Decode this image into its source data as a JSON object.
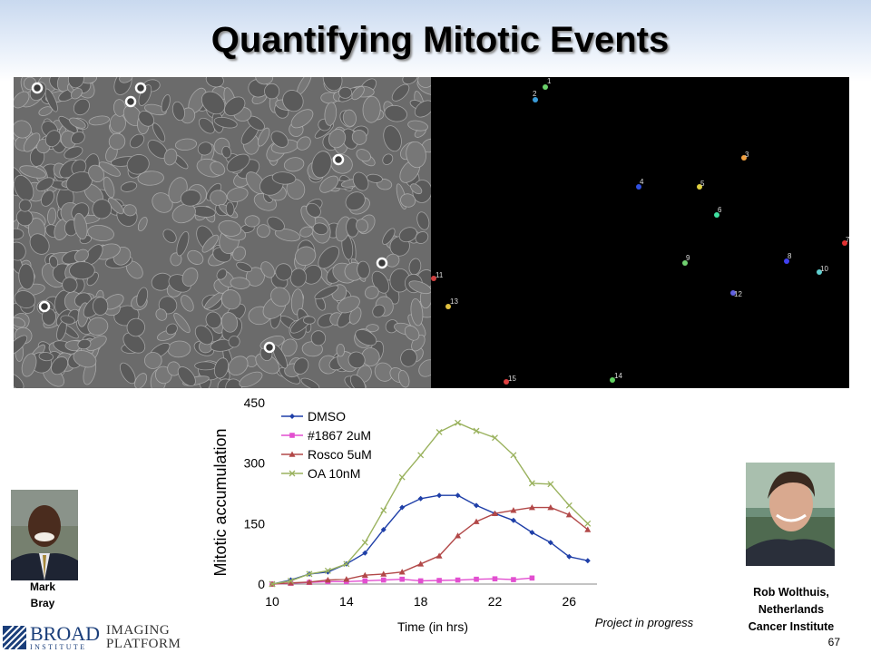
{
  "title": "Quantifying Mitotic Events",
  "tracked_cells": [
    "1",
    "2",
    "3",
    "4",
    "5",
    "6",
    "7",
    "8",
    "9",
    "10",
    "11",
    "12",
    "13",
    "14",
    "15"
  ],
  "chart_data": {
    "type": "line",
    "xlabel": "Time (in hrs)",
    "ylabel": "Mitotic accumulation",
    "xlim": [
      10,
      27.5
    ],
    "ylim": [
      0,
      450
    ],
    "x_ticks": [
      "10",
      "14",
      "18",
      "22",
      "26"
    ],
    "y_ticks": [
      "0",
      "150",
      "300",
      "450"
    ],
    "grid": false,
    "legend_position": "top-left",
    "x": [
      10,
      11,
      12,
      13,
      14,
      15,
      16,
      17,
      18,
      19,
      20,
      21,
      22,
      23,
      24,
      25,
      26,
      27
    ],
    "series": [
      {
        "name": "DMSO",
        "color": "#1f3fa8",
        "marker": "diamond",
        "values": [
          0,
          10,
          25,
          30,
          50,
          77,
          135,
          190,
          212,
          220,
          220,
          195,
          175,
          158,
          128,
          103,
          68,
          58
        ]
      },
      {
        "name": "#1867 2uM",
        "color": "#e24fd0",
        "marker": "square",
        "values": [
          0,
          2,
          4,
          6,
          6,
          8,
          10,
          12,
          8,
          9,
          10,
          12,
          13,
          11,
          15,
          null,
          null,
          null
        ]
      },
      {
        "name": "Rosco 5uM",
        "color": "#b24848",
        "marker": "triangle",
        "values": [
          0,
          3,
          5,
          10,
          12,
          22,
          25,
          30,
          50,
          70,
          120,
          155,
          175,
          183,
          190,
          190,
          172,
          135
        ]
      },
      {
        "name": "OA 10nM",
        "color": "#9ab25e",
        "marker": "x",
        "values": [
          0,
          8,
          25,
          33,
          50,
          103,
          183,
          265,
          320,
          377,
          400,
          380,
          363,
          320,
          250,
          248,
          195,
          150
        ]
      }
    ]
  },
  "people": {
    "left": {
      "name_line1": "Mark",
      "name_line2": "Bray"
    },
    "right": {
      "name_line1": "Rob Wolthuis,",
      "name_line2": "Netherlands",
      "name_line3": "Cancer Institute"
    }
  },
  "note": "Project in progress",
  "slide_number": "67",
  "logos": {
    "broad_word": "BROAD",
    "broad_sub": "INSTITUTE",
    "imaging_line1": "IMAGING",
    "imaging_line2": "PLATFORM"
  }
}
